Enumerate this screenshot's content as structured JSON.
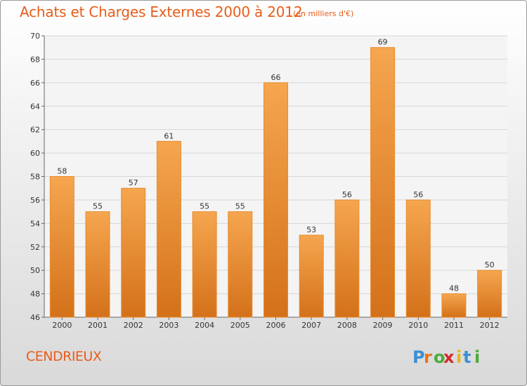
{
  "header": {
    "title": "Achats et Charges Externes 2000 à 2012",
    "unit_note": "(en milliers d'€)"
  },
  "footer": {
    "commune_name": "CENDRIEUX",
    "logo_text": "Proxiti"
  },
  "colors": {
    "accent": "#e85c1a",
    "bar_top": "#f5a64f",
    "bar_bottom": "#d4711a",
    "bar_edge": "#e88b2e",
    "grid": "#d6d6d6",
    "axis_text": "#333333",
    "logo_letters": [
      "#3a8fd6",
      "#e8731a",
      "#4cab3a",
      "#d42a2a",
      "#e8b81a",
      "#3a8fd6",
      "#4cab3a"
    ]
  },
  "chart_data": {
    "type": "bar",
    "title": "Achats et Charges Externes 2000 à 2012",
    "subtitle": "(en milliers d'€)",
    "categories": [
      "2000",
      "2001",
      "2002",
      "2003",
      "2004",
      "2005",
      "2006",
      "2007",
      "2008",
      "2009",
      "2010",
      "2011",
      "2012"
    ],
    "values": [
      58,
      55,
      57,
      61,
      55,
      55,
      66,
      53,
      56,
      69,
      56,
      48,
      50
    ],
    "ylim": [
      46,
      70
    ],
    "yticks": [
      46,
      48,
      50,
      52,
      54,
      56,
      58,
      60,
      62,
      64,
      66,
      68,
      70
    ],
    "grid": true,
    "data_labels": true,
    "legend": "none"
  }
}
